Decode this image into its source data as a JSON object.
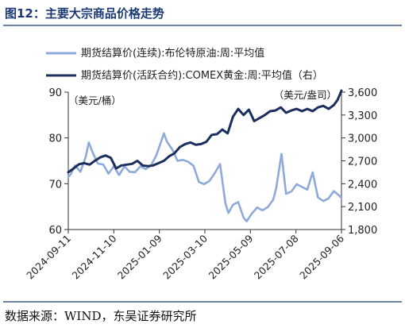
{
  "title": "图12：主要大宗商品价格走势",
  "source": "数据来源：WIND，东吴证券研究所",
  "chart_data": {
    "type": "line",
    "left_unit": "（美元/桶）",
    "right_unit": "（美元/盎司）",
    "y_left": {
      "min": 60,
      "max": 90,
      "ticks": [
        "60",
        "70",
        "80",
        "90"
      ]
    },
    "y_right": {
      "min": 1800,
      "max": 3600,
      "ticks": [
        "1,800",
        "2,100",
        "2,400",
        "2,700",
        "3,000",
        "3,300",
        "3,600"
      ]
    },
    "x_ticks": [
      "2024-09-11",
      "2024-11-10",
      "2025-01-09",
      "2025-03-10",
      "2025-05-09",
      "2025-07-08",
      "2025-09-06"
    ],
    "x_range": [
      "2024-09-11",
      "2025-09-06"
    ],
    "series": [
      {
        "name": "期货结算价(连续):布伦特原油:周:平均值",
        "axis": "left",
        "color": "#8eaadb",
        "points": [
          [
            "2024-09-11",
            71.5
          ],
          [
            "2024-09-14",
            72.0
          ],
          [
            "2024-09-20",
            74.0
          ],
          [
            "2024-09-27",
            72.6
          ],
          [
            "2024-10-04",
            75.9
          ],
          [
            "2024-10-08",
            79.0
          ],
          [
            "2024-10-14",
            76.5
          ],
          [
            "2024-10-20",
            74.4
          ],
          [
            "2024-10-27",
            74.2
          ],
          [
            "2024-11-03",
            72.2
          ],
          [
            "2024-11-10",
            73.8
          ],
          [
            "2024-11-17",
            71.9
          ],
          [
            "2024-11-24",
            73.8
          ],
          [
            "2024-12-01",
            72.6
          ],
          [
            "2024-12-08",
            72.5
          ],
          [
            "2024-12-15",
            73.8
          ],
          [
            "2024-12-22",
            73.2
          ],
          [
            "2024-12-29",
            74.0
          ],
          [
            "2025-01-05",
            76.2
          ],
          [
            "2025-01-12",
            79.5
          ],
          [
            "2025-01-15",
            81.0
          ],
          [
            "2025-01-19",
            79.2
          ],
          [
            "2025-01-26",
            77.5
          ],
          [
            "2025-02-02",
            75.0
          ],
          [
            "2025-02-09",
            75.2
          ],
          [
            "2025-02-16",
            74.8
          ],
          [
            "2025-02-23",
            73.9
          ],
          [
            "2025-03-02",
            70.4
          ],
          [
            "2025-03-09",
            69.9
          ],
          [
            "2025-03-16",
            70.6
          ],
          [
            "2025-03-23",
            72.3
          ],
          [
            "2025-03-30",
            74.3
          ],
          [
            "2025-04-06",
            65.8
          ],
          [
            "2025-04-10",
            63.6
          ],
          [
            "2025-04-16",
            65.4
          ],
          [
            "2025-04-23",
            66.0
          ],
          [
            "2025-04-30",
            62.6
          ],
          [
            "2025-05-04",
            61.8
          ],
          [
            "2025-05-11",
            63.5
          ],
          [
            "2025-05-18",
            64.8
          ],
          [
            "2025-05-25",
            64.2
          ],
          [
            "2025-06-01",
            64.9
          ],
          [
            "2025-06-08",
            66.5
          ],
          [
            "2025-06-12",
            69.0
          ],
          [
            "2025-06-19",
            76.5
          ],
          [
            "2025-06-25",
            67.8
          ],
          [
            "2025-07-02",
            68.3
          ],
          [
            "2025-07-09",
            69.9
          ],
          [
            "2025-07-16",
            69.3
          ],
          [
            "2025-07-23",
            68.7
          ],
          [
            "2025-07-30",
            72.5
          ],
          [
            "2025-08-06",
            67.0
          ],
          [
            "2025-08-13",
            66.2
          ],
          [
            "2025-08-20",
            66.8
          ],
          [
            "2025-08-27",
            68.4
          ],
          [
            "2025-09-03",
            67.4
          ],
          [
            "2025-09-06",
            66.9
          ]
        ]
      },
      {
        "name": "期货结算价(活跃合约):COMEX黄金:周:平均值（右）",
        "axis": "right",
        "color": "#1b2f5e",
        "points": [
          [
            "2024-09-11",
            2550
          ],
          [
            "2024-09-18",
            2600
          ],
          [
            "2024-09-25",
            2655
          ],
          [
            "2024-10-02",
            2670
          ],
          [
            "2024-10-09",
            2650
          ],
          [
            "2024-10-16",
            2700
          ],
          [
            "2024-10-23",
            2745
          ],
          [
            "2024-10-30",
            2770
          ],
          [
            "2024-11-06",
            2740
          ],
          [
            "2024-11-13",
            2600
          ],
          [
            "2024-11-20",
            2640
          ],
          [
            "2024-11-27",
            2650
          ],
          [
            "2024-12-04",
            2660
          ],
          [
            "2024-12-11",
            2700
          ],
          [
            "2024-12-18",
            2640
          ],
          [
            "2024-12-25",
            2630
          ],
          [
            "2025-01-01",
            2640
          ],
          [
            "2025-01-08",
            2670
          ],
          [
            "2025-01-15",
            2700
          ],
          [
            "2025-01-22",
            2760
          ],
          [
            "2025-01-29",
            2800
          ],
          [
            "2025-02-05",
            2880
          ],
          [
            "2025-02-12",
            2920
          ],
          [
            "2025-02-19",
            2940
          ],
          [
            "2025-02-26",
            2910
          ],
          [
            "2025-03-05",
            2920
          ],
          [
            "2025-03-12",
            2950
          ],
          [
            "2025-03-19",
            3040
          ],
          [
            "2025-03-26",
            3050
          ],
          [
            "2025-04-02",
            3110
          ],
          [
            "2025-04-09",
            3060
          ],
          [
            "2025-04-16",
            3280
          ],
          [
            "2025-04-23",
            3380
          ],
          [
            "2025-04-30",
            3300
          ],
          [
            "2025-05-07",
            3370
          ],
          [
            "2025-05-14",
            3220
          ],
          [
            "2025-05-21",
            3260
          ],
          [
            "2025-05-28",
            3300
          ],
          [
            "2025-06-04",
            3350
          ],
          [
            "2025-06-11",
            3360
          ],
          [
            "2025-06-18",
            3400
          ],
          [
            "2025-06-25",
            3330
          ],
          [
            "2025-07-02",
            3360
          ],
          [
            "2025-07-09",
            3380
          ],
          [
            "2025-07-16",
            3350
          ],
          [
            "2025-07-23",
            3380
          ],
          [
            "2025-07-30",
            3350
          ],
          [
            "2025-08-06",
            3400
          ],
          [
            "2025-08-13",
            3420
          ],
          [
            "2025-08-20",
            3380
          ],
          [
            "2025-08-27",
            3430
          ],
          [
            "2025-09-01",
            3500
          ],
          [
            "2025-09-06",
            3620
          ]
        ]
      }
    ]
  }
}
